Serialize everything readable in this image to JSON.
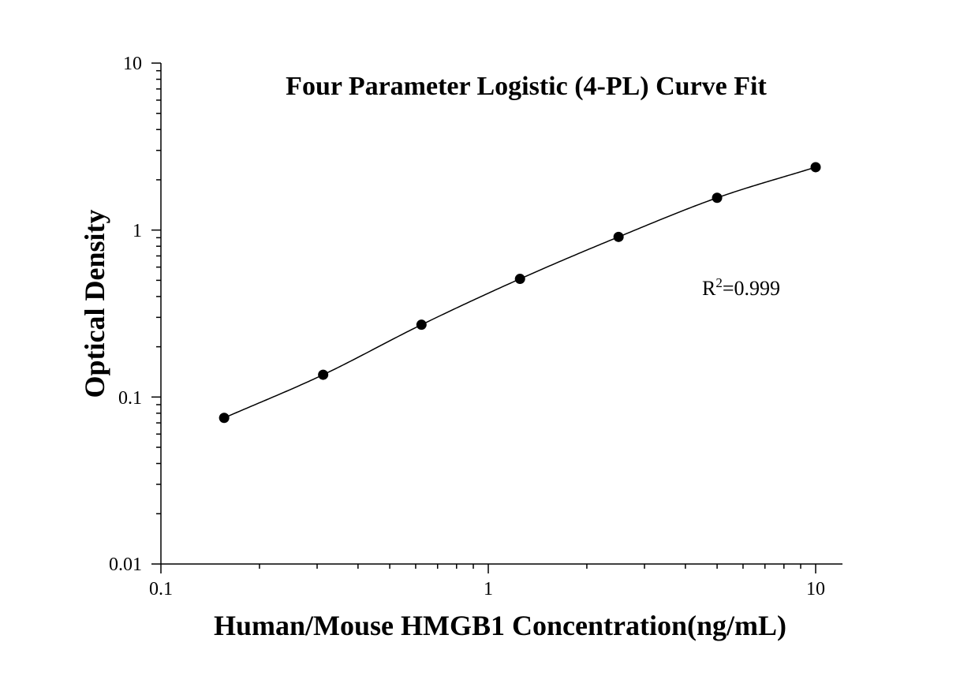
{
  "chart_data": {
    "type": "scatter",
    "title": "Four Parameter Logistic (4-PL) Curve Fit",
    "xlabel": "Human/Mouse HMGB1 Concentration(ng/mL)",
    "ylabel": "Optical Density",
    "xscale": "log",
    "yscale": "log",
    "xlim": [
      0.1,
      12
    ],
    "ylim": [
      0.01,
      10
    ],
    "x_ticks": [
      "0.1",
      "1",
      "10"
    ],
    "y_ticks": [
      "0.01",
      "0.1",
      "1",
      "10"
    ],
    "grid": false,
    "annotation": {
      "prefix": "R",
      "superscript": "2",
      "suffix": "=0.999"
    },
    "series": [
      {
        "x": [
          0.156,
          0.313,
          0.625,
          1.25,
          2.5,
          5,
          10
        ],
        "y": [
          0.075,
          0.136,
          0.271,
          0.51,
          0.91,
          1.56,
          2.38
        ]
      }
    ]
  }
}
